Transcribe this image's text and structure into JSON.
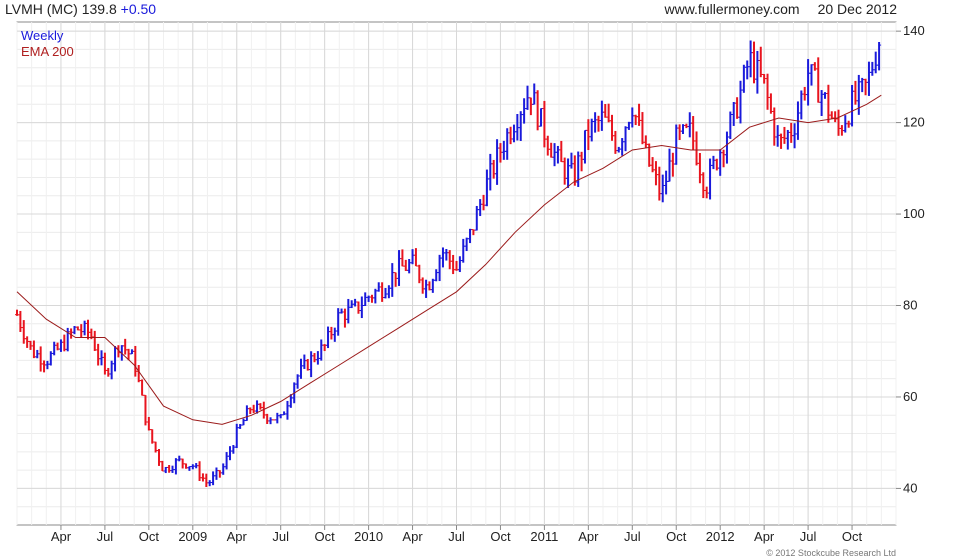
{
  "header": {
    "symbol": "LVMH (MC)",
    "last": "139.8",
    "change": "+0.50",
    "source": "www.fullermoney.com",
    "date": "20 Dec 2012"
  },
  "legend": {
    "weekly": "Weekly",
    "ema": "EMA 200"
  },
  "copyright": "© 2012 Stockcube Research Ltd",
  "colors": {
    "up": "#1a1adb",
    "down": "#e8141e",
    "ema": "#9b1b1b",
    "grid": "#d8d8d8"
  },
  "chart_data": {
    "type": "line",
    "frequency": "weekly",
    "ylim": [
      32,
      142
    ],
    "yticks": [
      40,
      60,
      80,
      100,
      120,
      140
    ],
    "xticks": [
      "Apr",
      "Jul",
      "Oct",
      "2009",
      "Apr",
      "Jul",
      "Oct",
      "2010",
      "Apr",
      "Jul",
      "Oct",
      "2011",
      "Apr",
      "Jul",
      "Oct",
      "2012",
      "Apr",
      "Jul",
      "Oct"
    ],
    "grid": true,
    "series": [
      {
        "name": "Weekly",
        "style": "ohlc-bars",
        "x": [
          "2008-01",
          "2008-02",
          "2008-03",
          "2008-04",
          "2008-05",
          "2008-06",
          "2008-07",
          "2008-08",
          "2008-09",
          "2008-10",
          "2008-11",
          "2008-12",
          "2009-01",
          "2009-02",
          "2009-03",
          "2009-04",
          "2009-05",
          "2009-06",
          "2009-07",
          "2009-08",
          "2009-09",
          "2009-10",
          "2009-11",
          "2009-12",
          "2010-01",
          "2010-02",
          "2010-03",
          "2010-04",
          "2010-05",
          "2010-06",
          "2010-07",
          "2010-08",
          "2010-09",
          "2010-10",
          "2010-11",
          "2010-12",
          "2011-01",
          "2011-02",
          "2011-03",
          "2011-04",
          "2011-05",
          "2011-06",
          "2011-07",
          "2011-08",
          "2011-09",
          "2011-10",
          "2011-11",
          "2011-12",
          "2012-01",
          "2012-02",
          "2012-03",
          "2012-04",
          "2012-05",
          "2012-06",
          "2012-07",
          "2012-08",
          "2012-09",
          "2012-10",
          "2012-11",
          "2012-12"
        ],
        "values": [
          78,
          70,
          68,
          71,
          75,
          74,
          65,
          72,
          68,
          52,
          44,
          46,
          45,
          41,
          44,
          52,
          58,
          56,
          55,
          64,
          68,
          71,
          78,
          79,
          82,
          84,
          88,
          89,
          84,
          92,
          88,
          96,
          106,
          114,
          121,
          127,
          118,
          111,
          108,
          118,
          121,
          115,
          124,
          112,
          104,
          116,
          118,
          106,
          114,
          122,
          134,
          128,
          115,
          119,
          131,
          126,
          118,
          124,
          128,
          139.8
        ]
      },
      {
        "name": "EMA 200",
        "style": "line",
        "x": [
          "2008-01",
          "2008-03",
          "2008-05",
          "2008-07",
          "2008-09",
          "2008-11",
          "2009-01",
          "2009-03",
          "2009-05",
          "2009-07",
          "2009-09",
          "2009-11",
          "2010-01",
          "2010-03",
          "2010-05",
          "2010-07",
          "2010-09",
          "2010-11",
          "2011-01",
          "2011-03",
          "2011-05",
          "2011-07",
          "2011-09",
          "2011-11",
          "2012-01",
          "2012-03",
          "2012-05",
          "2012-07",
          "2012-09",
          "2012-11",
          "2012-12"
        ],
        "values": [
          83,
          77,
          73,
          73,
          67,
          58,
          55,
          54,
          56,
          59,
          63,
          67,
          71,
          75,
          79,
          83,
          89,
          96,
          102,
          107,
          110,
          114,
          115,
          114,
          114,
          119,
          121,
          120,
          121,
          124,
          126
        ]
      }
    ]
  }
}
